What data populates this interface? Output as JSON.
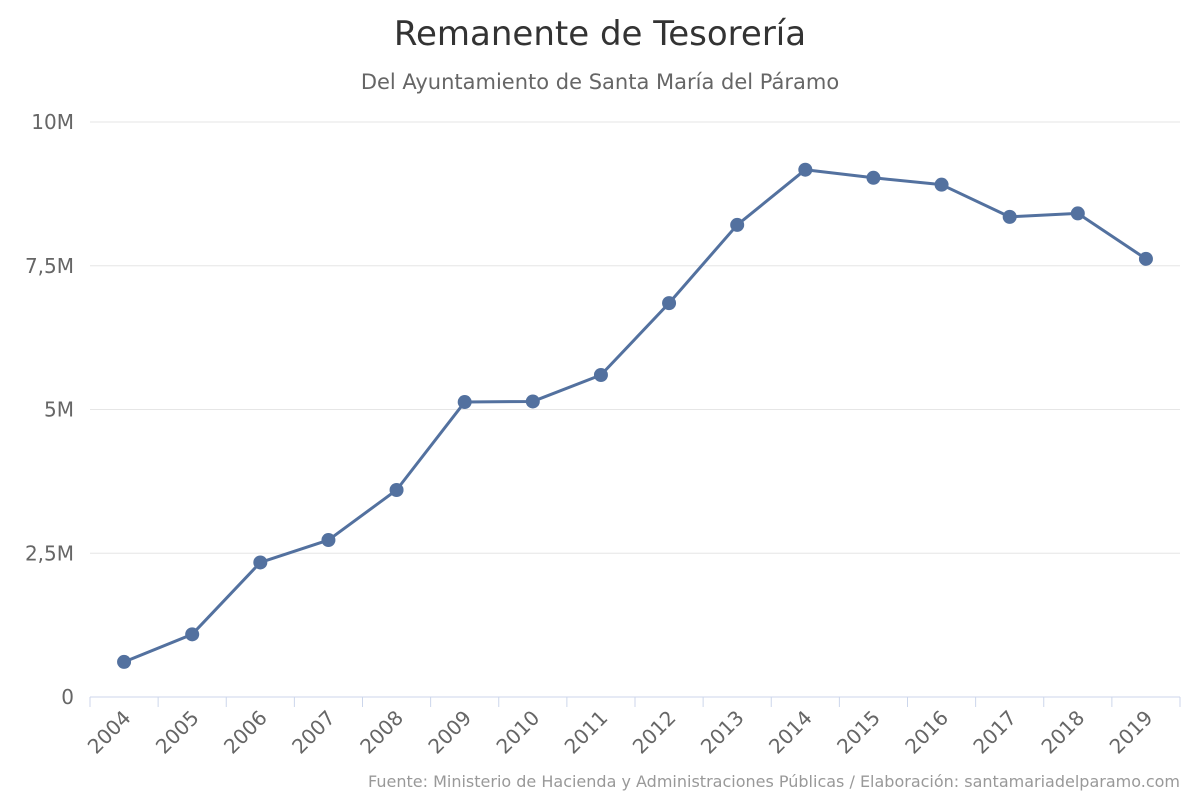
{
  "chart_data": {
    "type": "line",
    "title": "Remanente de Tesorería",
    "subtitle": "Del Ayuntamiento de Santa María del Páramo",
    "credits": "Fuente: Ministerio de Hacienda y Administraciones Públicas / Elaboración: santamariadelparamo.com",
    "categories": [
      "2004",
      "2005",
      "2006",
      "2007",
      "2008",
      "2009",
      "2010",
      "2011",
      "2012",
      "2013",
      "2014",
      "2015",
      "2016",
      "2017",
      "2018",
      "2019"
    ],
    "series": [
      {
        "values": [
          610000,
          1090000,
          2340000,
          2730000,
          3600000,
          5130000,
          5140000,
          5600000,
          6850000,
          8210000,
          9170000,
          9030000,
          8910000,
          8350000,
          8410000,
          7620000
        ],
        "color": "#53719f"
      }
    ],
    "ylim": [
      0,
      10000000
    ],
    "yticks": [
      {
        "value": 0,
        "label": "0"
      },
      {
        "value": 2500000,
        "label": "2,5M"
      },
      {
        "value": 5000000,
        "label": "5M"
      },
      {
        "value": 7500000,
        "label": "7,5M"
      },
      {
        "value": 10000000,
        "label": "10M"
      }
    ],
    "xlabel": "",
    "ylabel": "",
    "grid": true,
    "legend": "none",
    "colors": {
      "gridline": "#e6e6e6",
      "axis_line": "#ccd6eb",
      "tick_label": "#666666",
      "title": "#333333"
    }
  }
}
